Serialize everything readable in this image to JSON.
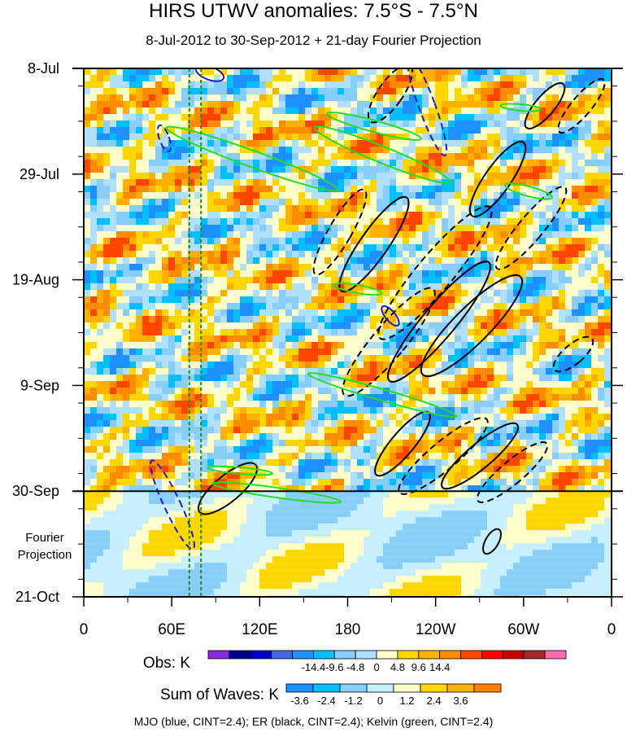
{
  "chart_data": {
    "type": "heatmap",
    "title": "HIRS UTWV anomalies: 7.5°S - 7.5°N",
    "subtitle": "8-Jul-2012 to 30-Sep-2012 + 21-day Fourier Projection",
    "xlabel": "",
    "ylabel": "",
    "x_ticks": [
      "0",
      "60E",
      "120E",
      "180",
      "120W",
      "60W",
      "0"
    ],
    "x_range": [
      0,
      360
    ],
    "y_ticks": [
      {
        "label": "8-Jul",
        "day": 0
      },
      {
        "label": "29-Jul",
        "day": 21
      },
      {
        "label": "19-Aug",
        "day": 42
      },
      {
        "label": "9-Sep",
        "day": 63
      },
      {
        "label": "30-Sep",
        "day": 84
      },
      {
        "label": "21-Oct",
        "day": 105
      }
    ],
    "projection_label": [
      "Fourier",
      "Projection"
    ],
    "projection_start_day": 84,
    "reference_lines_lon": [
      72,
      80
    ],
    "obs_colorbar": {
      "label": "Obs: K",
      "tick_labels": [
        "-14.4",
        "-9.6",
        "-4.8",
        "0",
        "4.8",
        "9.6",
        "14.4"
      ],
      "colors": [
        "#8a2be2",
        "#00008b",
        "#0000cd",
        "#4169e1",
        "#1e90ff",
        "#00bfff",
        "#87cefa",
        "#b0e0ff",
        "#ffffcc",
        "#ffd700",
        "#ffb000",
        "#ff8c00",
        "#ff4500",
        "#ff0000",
        "#c80000",
        "#a52a2a",
        "#ff69b4"
      ]
    },
    "waves_colorbar": {
      "label": "Sum of Waves: K",
      "tick_labels": [
        "-3.6",
        "-2.4",
        "-1.2",
        "0",
        "1.2",
        "2.4",
        "3.6"
      ],
      "colors": [
        "#1e90ff",
        "#00bfff",
        "#87cefa",
        "#c6f0ff",
        "#ffffcc",
        "#ffd700",
        "#ffb000",
        "#ff7f00"
      ]
    },
    "footnote": "MJO (blue, CINT=2.4); ER (black, CINT=2.4); Kelvin (green, CINT=2.4)",
    "series_colors": {
      "mjo": "#1a1acc",
      "er": "#000000",
      "kelvin": "#22dd22"
    }
  }
}
